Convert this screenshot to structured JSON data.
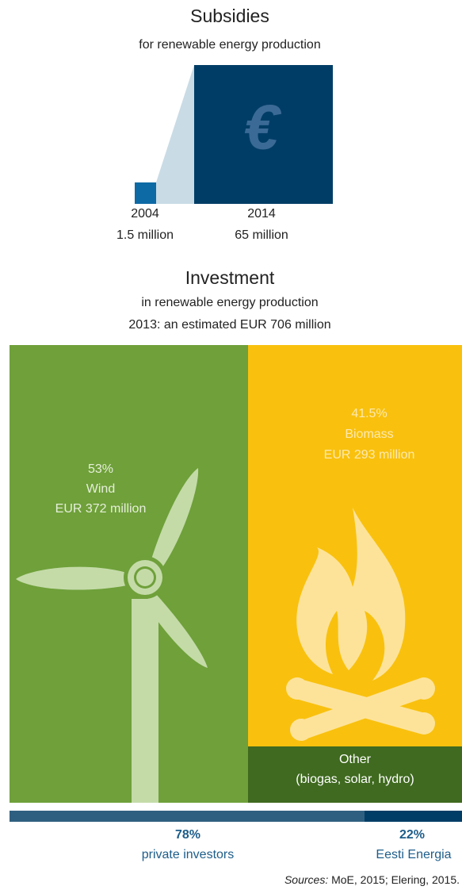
{
  "subsidies": {
    "title": "Subsidies",
    "subtitle": "for renewable energy production",
    "icon": "€",
    "items": [
      {
        "year": "2004",
        "amount": "1.5 million"
      },
      {
        "year": "2014",
        "amount": "65 million"
      }
    ]
  },
  "investment": {
    "title": "Investment",
    "subtitle": "in renewable energy production",
    "note": "2013: an estimated EUR 706 million",
    "segments": [
      {
        "share": "53%",
        "name": "Wind",
        "amount": "EUR 372 million"
      },
      {
        "share": "41.5%",
        "name": "Biomass",
        "amount": "EUR 293 million"
      },
      {
        "name": "Other",
        "detail": "(biogas, solar, hydro)"
      }
    ],
    "investors": [
      {
        "share": "78%",
        "name": "private investors"
      },
      {
        "share": "22%",
        "name": "Eesti Energia"
      }
    ]
  },
  "sources": {
    "label": "Sources:",
    "text": "MoE, 2015; Elering, 2015."
  }
}
